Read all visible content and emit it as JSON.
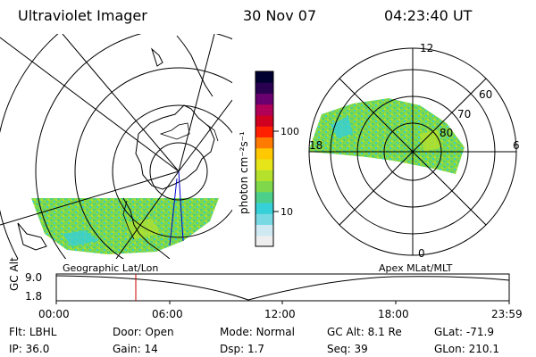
{
  "header": {
    "instrument": "Ultraviolet Imager",
    "date": "30 Nov 07",
    "time": "04:23:40 UT"
  },
  "colorbar": {
    "label": "photon cm⁻²s⁻¹",
    "ticks": [
      "100",
      "10"
    ],
    "tick_values": [
      100,
      10
    ],
    "range": [
      2,
      400
    ],
    "colors": [
      "#eeeeee",
      "#cfe9f3",
      "#79d9e3",
      "#36d0d8",
      "#4ccf8a",
      "#7fd84a",
      "#b5e12c",
      "#e6e51a",
      "#ffc800",
      "#ff7a00",
      "#ff2000",
      "#d00020",
      "#b00058",
      "#6a0070",
      "#2a0050",
      "#000030"
    ]
  },
  "left_panel": {
    "label": "Geographic Lat/Lon"
  },
  "right_panel": {
    "label": "Apex MLat/MLT",
    "mlt_labels": [
      "12",
      "18",
      "6",
      "0"
    ],
    "lat_labels": [
      "60",
      "70",
      "80"
    ]
  },
  "timeline": {
    "ylabel": "GC Alt",
    "yticks": [
      "9.0",
      "1.8"
    ],
    "xticks": [
      "00:00",
      "06:00",
      "12:00",
      "18:00",
      "23:59"
    ],
    "marker_time": "04:23:40",
    "marker_color": "#cc0000"
  },
  "status": {
    "row1": [
      {
        "label": "Flt:",
        "value": "LBHL"
      },
      {
        "label": "Door:",
        "value": "Open"
      },
      {
        "label": "Mode:",
        "value": "Normal"
      },
      {
        "label": "GC Alt:",
        "value": "8.1 Re"
      },
      {
        "label": "GLat:",
        "value": "-71.9"
      }
    ],
    "row2": [
      {
        "label": "IP:",
        "value": "36.0"
      },
      {
        "label": "Gain:",
        "value": "14"
      },
      {
        "label": "Dsp:",
        "value": "1.7"
      },
      {
        "label": "Seq:",
        "value": "39"
      },
      {
        "label": "GLon:",
        "value": "210.1"
      }
    ]
  }
}
